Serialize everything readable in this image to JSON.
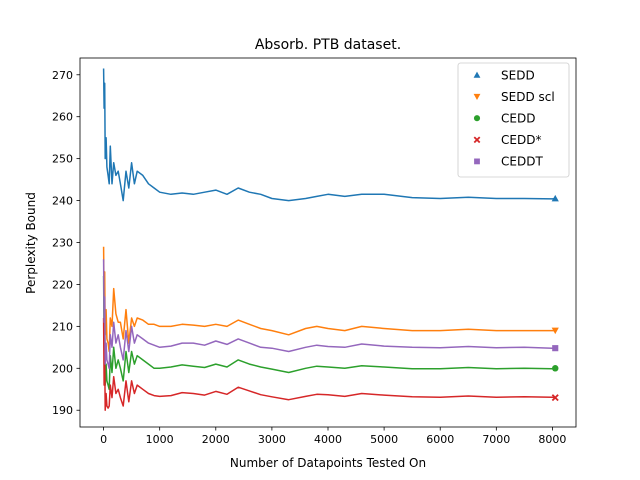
{
  "chart_data": {
    "type": "line",
    "title": "Absorb. PTB dataset.",
    "xlabel": "Number of Datapoints Tested On",
    "ylabel": "Perplexity Bound",
    "xlim": [
      -420,
      8420
    ],
    "ylim": [
      186,
      274
    ],
    "xticks": [
      0,
      1000,
      2000,
      3000,
      4000,
      5000,
      6000,
      7000,
      8000
    ],
    "xtick_labels": [
      "0",
      "1000",
      "2000",
      "3000",
      "4000",
      "5000",
      "6000",
      "7000",
      "8000"
    ],
    "yticks": [
      190,
      200,
      210,
      220,
      230,
      240,
      250,
      260,
      270
    ],
    "ytick_labels": [
      "190",
      "200",
      "210",
      "220",
      "230",
      "240",
      "250",
      "260",
      "270"
    ],
    "grid": false,
    "legend_position": "top-right",
    "series": [
      {
        "name": "SEDD",
        "color": "#1f77b4",
        "marker": "triangle",
        "x": [
          0,
          10,
          20,
          30,
          45,
          60,
          80,
          100,
          120,
          150,
          180,
          220,
          260,
          300,
          350,
          400,
          450,
          500,
          550,
          600,
          700,
          800,
          900,
          1000,
          1200,
          1400,
          1600,
          1800,
          2000,
          2200,
          2400,
          2600,
          2800,
          3000,
          3300,
          3600,
          3800,
          4000,
          4300,
          4600,
          5000,
          5500,
          6000,
          6500,
          7000,
          7500,
          8000,
          8050
        ],
        "y": [
          271.5,
          262,
          268,
          250,
          255,
          248,
          246,
          244,
          253,
          244,
          249,
          246,
          247,
          244,
          240,
          247,
          243,
          249,
          244,
          247,
          246,
          244,
          243,
          242,
          241.5,
          241.8,
          241.5,
          242,
          242.5,
          241.5,
          243,
          242,
          241.5,
          240.5,
          240,
          240.5,
          241,
          241.5,
          241,
          241.5,
          241.5,
          240.7,
          240.5,
          240.8,
          240.5,
          240.5,
          240.4,
          240.5
        ]
      },
      {
        "name": "SEDD scl",
        "color": "#ff7f0e",
        "marker": "triangle-down",
        "x": [
          0,
          10,
          20,
          30,
          45,
          60,
          80,
          100,
          120,
          150,
          180,
          220,
          260,
          300,
          350,
          400,
          450,
          500,
          550,
          600,
          700,
          800,
          900,
          1000,
          1200,
          1400,
          1600,
          1800,
          2000,
          2200,
          2400,
          2600,
          2800,
          3000,
          3300,
          3600,
          3800,
          4000,
          4300,
          4600,
          5000,
          5500,
          6000,
          6500,
          7000,
          7500,
          8000,
          8050
        ],
        "y": [
          229,
          216,
          223,
          208,
          214,
          207,
          206,
          204,
          212,
          210,
          219,
          213,
          211,
          211,
          207,
          214,
          206,
          212,
          210,
          212,
          211.5,
          210.5,
          210.5,
          210,
          210,
          210.5,
          210.3,
          210,
          210.5,
          210,
          211.5,
          210.5,
          209.5,
          209,
          208,
          209.5,
          210,
          209.5,
          209,
          210,
          209.5,
          209,
          209,
          209.3,
          209,
          209,
          209,
          209
        ]
      },
      {
        "name": "CEDD",
        "color": "#2ca02c",
        "marker": "circle",
        "x": [
          0,
          10,
          20,
          30,
          45,
          60,
          80,
          100,
          120,
          150,
          180,
          220,
          260,
          300,
          350,
          400,
          450,
          500,
          550,
          600,
          700,
          800,
          900,
          1000,
          1200,
          1400,
          1600,
          1800,
          2000,
          2200,
          2400,
          2600,
          2800,
          3000,
          3300,
          3600,
          3800,
          4000,
          4300,
          4600,
          5000,
          5500,
          6000,
          6500,
          7000,
          7500,
          8000,
          8050
        ],
        "y": [
          222,
          205,
          211,
          196,
          201,
          197,
          196,
          195,
          203,
          199,
          205,
          200,
          202,
          200,
          197,
          204,
          199,
          204,
          201,
          203,
          202,
          201,
          200,
          200,
          200.3,
          200.8,
          200.5,
          200.2,
          201,
          200.3,
          202,
          201,
          200.3,
          199.8,
          199,
          200,
          200.5,
          200.3,
          200,
          200.6,
          200.3,
          199.9,
          199.9,
          200.2,
          199.9,
          200,
          199.9,
          200
        ]
      },
      {
        "name": "CEDD*",
        "color": "#d62728",
        "marker": "x",
        "x": [
          0,
          10,
          20,
          30,
          45,
          60,
          80,
          100,
          120,
          150,
          180,
          220,
          260,
          300,
          350,
          400,
          450,
          500,
          550,
          600,
          700,
          800,
          900,
          1000,
          1200,
          1400,
          1600,
          1800,
          2000,
          2200,
          2400,
          2600,
          2800,
          3000,
          3300,
          3600,
          3800,
          4000,
          4300,
          4600,
          5000,
          5500,
          6000,
          6500,
          7000,
          7500,
          8000,
          8050
        ],
        "y": [
          212,
          196,
          203,
          190,
          194,
          191,
          190.5,
          191,
          196,
          193,
          198,
          194,
          195,
          193,
          191,
          197,
          192,
          197,
          194,
          196,
          195,
          194,
          193.5,
          193.3,
          193.5,
          194.2,
          194,
          193.6,
          194.5,
          193.8,
          195.5,
          194.6,
          193.7,
          193.2,
          192.5,
          193.3,
          193.8,
          193.7,
          193.3,
          194,
          193.6,
          193.2,
          193.1,
          193.4,
          193.1,
          193.2,
          193.1,
          193
        ]
      },
      {
        "name": "CEDDT",
        "color": "#9467bd",
        "marker": "square",
        "x": [
          0,
          10,
          20,
          30,
          45,
          60,
          80,
          100,
          120,
          150,
          180,
          220,
          260,
          300,
          350,
          400,
          450,
          500,
          550,
          600,
          700,
          800,
          900,
          1000,
          1200,
          1400,
          1600,
          1800,
          2000,
          2200,
          2400,
          2600,
          2800,
          3000,
          3300,
          3600,
          3800,
          4000,
          4300,
          4600,
          5000,
          5500,
          6000,
          6500,
          7000,
          7500,
          8000,
          8050
        ],
        "y": [
          226,
          211,
          217,
          201,
          206,
          202,
          201,
          200,
          208,
          205,
          211,
          206,
          208,
          205,
          202,
          209,
          204,
          210,
          206,
          208,
          207,
          206,
          205.5,
          205,
          205.3,
          206,
          206,
          205.5,
          206.5,
          205.7,
          207,
          206,
          205,
          204.8,
          204,
          205,
          205.5,
          205.2,
          205,
          205.8,
          205.3,
          205,
          204.9,
          205.2,
          204.9,
          205,
          204.8,
          204.8
        ]
      }
    ]
  }
}
